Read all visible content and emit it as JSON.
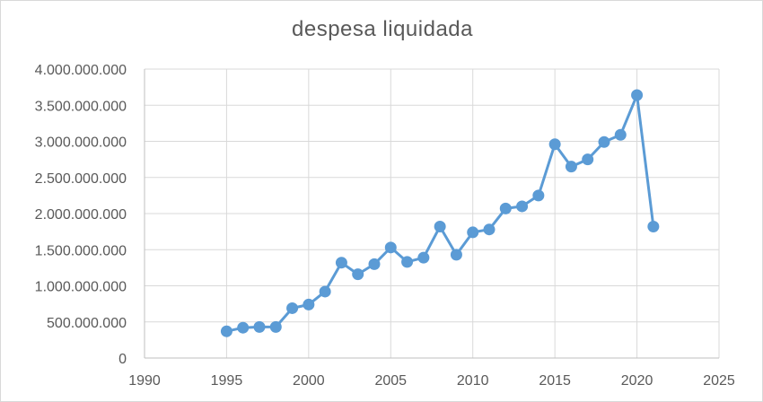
{
  "chart_data": {
    "type": "scatter",
    "title": "despesa liquidada",
    "xlabel": "",
    "ylabel": "",
    "xlim": [
      1990,
      2025
    ],
    "ylim": [
      0,
      4000000000
    ],
    "x_ticks": [
      1990,
      1995,
      2000,
      2005,
      2010,
      2015,
      2020,
      2025
    ],
    "x_tick_labels": [
      "1990",
      "1995",
      "2000",
      "2005",
      "2010",
      "2015",
      "2020",
      "2025"
    ],
    "y_ticks": [
      0,
      500000000,
      1000000000,
      1500000000,
      2000000000,
      2500000000,
      3000000000,
      3500000000,
      4000000000
    ],
    "y_tick_labels": [
      "0",
      "500.000.000",
      "1.000.000.000",
      "1.500.000.000",
      "2.000.000.000",
      "2.500.000.000",
      "3.000.000.000",
      "3.500.000.000",
      "4.000.000.000"
    ],
    "grid": true,
    "legend": "none",
    "series_color": "#5b9bd5",
    "series": [
      {
        "x": [
          1995,
          1996,
          1997,
          1998,
          1999,
          2000,
          2001,
          2002,
          2003,
          2004,
          2005,
          2006,
          2007,
          2008,
          2009,
          2010,
          2011,
          2012,
          2013,
          2014,
          2015,
          2016,
          2017,
          2018,
          2019,
          2020,
          2021
        ],
        "y": [
          370000000,
          420000000,
          430000000,
          430000000,
          690000000,
          740000000,
          920000000,
          1320000000,
          1160000000,
          1300000000,
          1530000000,
          1330000000,
          1390000000,
          1820000000,
          1430000000,
          1740000000,
          1780000000,
          2070000000,
          2100000000,
          2250000000,
          2960000000,
          2650000000,
          2750000000,
          2990000000,
          3090000000,
          3640000000,
          1820000000
        ]
      }
    ]
  }
}
